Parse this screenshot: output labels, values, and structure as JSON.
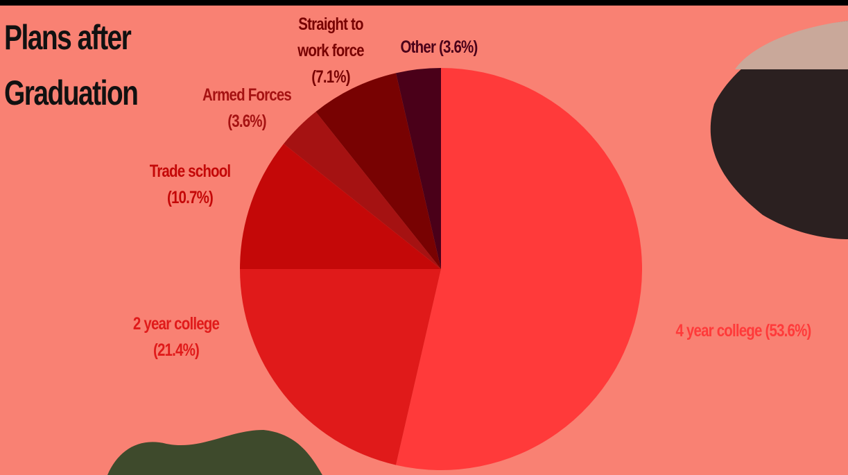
{
  "chart_data": {
    "type": "pie",
    "title": "Plans after Graduation",
    "categories": [
      "4 year college",
      "2 year college",
      "Trade school",
      "Armed Forces",
      "Straight to work force",
      "Other"
    ],
    "values": [
      53.6,
      21.4,
      10.7,
      3.6,
      7.1,
      3.6
    ],
    "value_labels": [
      "(53.6%)",
      "(21.4%)",
      "(10.7%)",
      "(3.6%)",
      "(7.1%)",
      "(3.6%)"
    ],
    "colors": [
      "#ff3a3a",
      "#e01a1a",
      "#c40808",
      "#a51212",
      "#780202",
      "#4a0019"
    ]
  }
}
